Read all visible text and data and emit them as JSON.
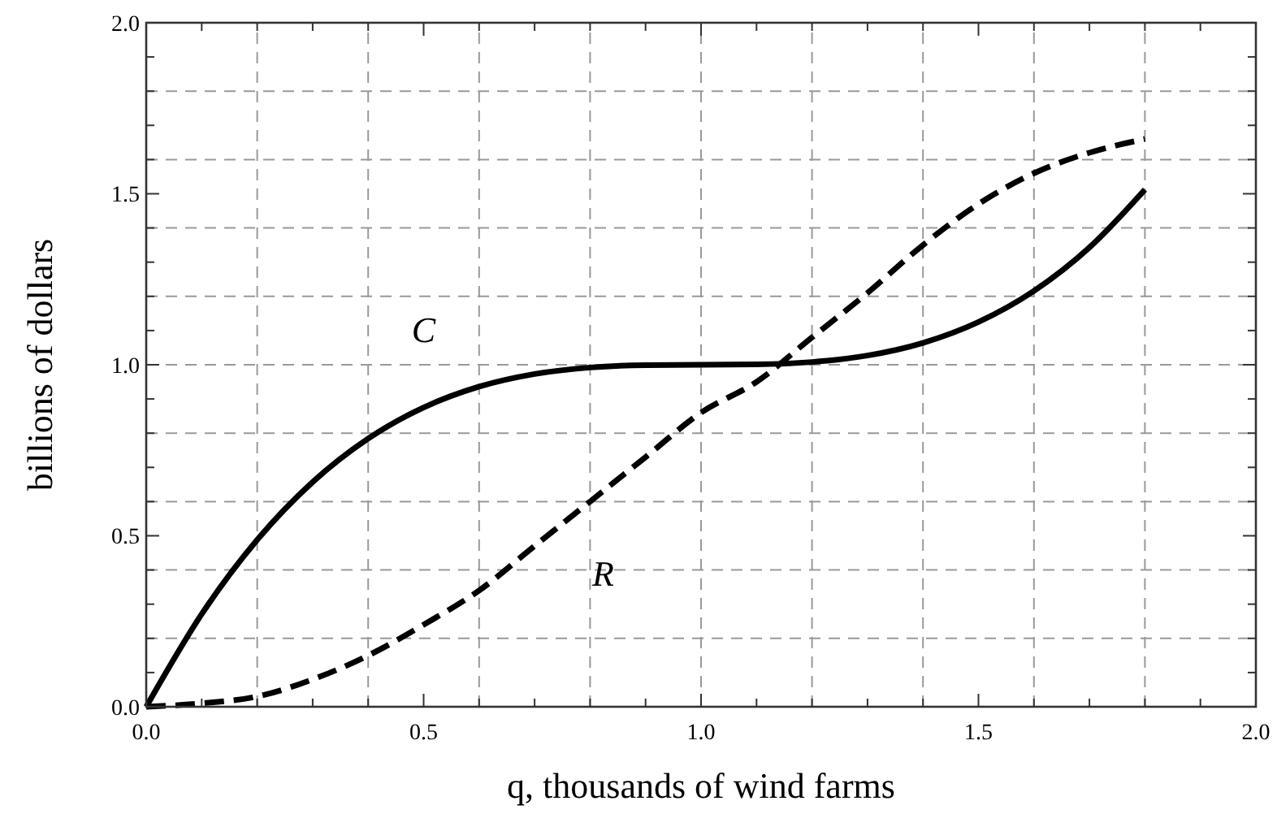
{
  "chart_data": {
    "type": "line",
    "xlabel": "q, thousands of wind farms",
    "ylabel": "billions of dollars",
    "x": [
      0,
      0.1,
      0.2,
      0.3,
      0.4,
      0.5,
      0.6,
      0.7,
      0.8,
      0.9,
      1.0,
      1.1,
      1.2,
      1.3,
      1.4,
      1.5,
      1.6,
      1.7,
      1.8
    ],
    "series": [
      {
        "name": "C",
        "color": "#000000",
        "line_style": "solid",
        "values": [
          0,
          0.271,
          0.488,
          0.657,
          0.784,
          0.875,
          0.936,
          0.973,
          0.992,
          0.999,
          1.0,
          1.001,
          1.008,
          1.027,
          1.064,
          1.125,
          1.216,
          1.343,
          1.512
        ]
      },
      {
        "name": "R",
        "color": "#000000",
        "line_style": "dashed",
        "values": [
          0,
          0.01,
          0.03,
          0.08,
          0.15,
          0.24,
          0.34,
          0.47,
          0.6,
          0.73,
          0.86,
          0.95,
          1.08,
          1.21,
          1.35,
          1.47,
          1.56,
          1.62,
          1.66
        ]
      }
    ],
    "xlim": [
      0,
      2
    ],
    "ylim": [
      0,
      2
    ],
    "xticks": [
      {
        "value": 0,
        "label": "0.0"
      },
      {
        "value": 0.1,
        "label": null
      },
      {
        "value": 0.2,
        "label": null
      },
      {
        "value": 0.3,
        "label": null
      },
      {
        "value": 0.4,
        "label": null
      },
      {
        "value": 0.5,
        "label": "0.5"
      },
      {
        "value": 0.6,
        "label": null
      },
      {
        "value": 0.7,
        "label": null
      },
      {
        "value": 0.8,
        "label": null
      },
      {
        "value": 0.9,
        "label": null
      },
      {
        "value": 1,
        "label": "1.0"
      },
      {
        "value": 1.1,
        "label": null
      },
      {
        "value": 1.2,
        "label": null
      },
      {
        "value": 1.3,
        "label": null
      },
      {
        "value": 1.4,
        "label": null
      },
      {
        "value": 1.5,
        "label": "1.5"
      },
      {
        "value": 1.6,
        "label": null
      },
      {
        "value": 1.7,
        "label": null
      },
      {
        "value": 1.8,
        "label": null
      },
      {
        "value": 1.9,
        "label": null
      },
      {
        "value": 2,
        "label": "2.0"
      }
    ],
    "yticks": [
      {
        "value": 0,
        "label": "0.0"
      },
      {
        "value": 0.1,
        "label": null
      },
      {
        "value": 0.2,
        "label": null
      },
      {
        "value": 0.3,
        "label": null
      },
      {
        "value": 0.4,
        "label": null
      },
      {
        "value": 0.5,
        "label": "0.5"
      },
      {
        "value": 0.6,
        "label": null
      },
      {
        "value": 0.7,
        "label": null
      },
      {
        "value": 0.8,
        "label": null
      },
      {
        "value": 0.9,
        "label": null
      },
      {
        "value": 1,
        "label": "1.0"
      },
      {
        "value": 1.1,
        "label": null
      },
      {
        "value": 1.2,
        "label": null
      },
      {
        "value": 1.3,
        "label": null
      },
      {
        "value": 1.4,
        "label": null
      },
      {
        "value": 1.5,
        "label": "1.5"
      },
      {
        "value": 1.6,
        "label": null
      },
      {
        "value": 1.7,
        "label": null
      },
      {
        "value": 1.8,
        "label": null
      },
      {
        "value": 1.9,
        "label": null
      },
      {
        "value": 2,
        "label": "2.0"
      }
    ],
    "grid": true
  }
}
